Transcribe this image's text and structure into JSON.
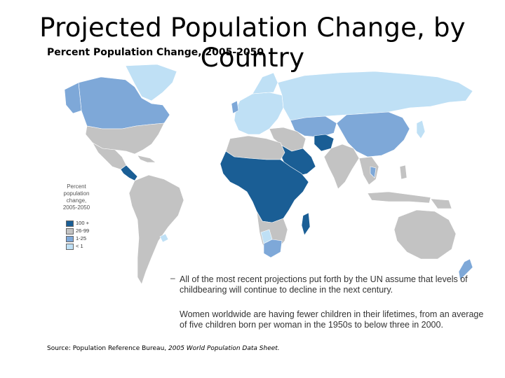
{
  "slide": {
    "title": "Projected Population Change, by Country",
    "subtitle": "Percent Population Change, 2005-2050",
    "note_1": "All of the most recent projections put forth by the UN assume that levels of childbearing will continue to decline in the next century.",
    "note_2": "Women worldwide are having fewer children in their lifetimes, from an average of five children born per woman in the 1950s to below three in 2000.",
    "source_prefix": "Source: Population Reference Bureau,",
    "source_title": "2005 World Population Data Sheet."
  },
  "legend": {
    "title_lines": [
      "Percent",
      "population",
      "change,",
      "2005-2050"
    ],
    "items": [
      {
        "label": "100 +",
        "color": "#1a5e95"
      },
      {
        "label": "26-99",
        "color": "#c3c3c3"
      },
      {
        "label": "1-25",
        "color": "#7ea8d8"
      },
      {
        "label": "< 1",
        "color": "#bfe0f5"
      }
    ]
  },
  "colors": {
    "ocean": "#ffffff",
    "border": "#ffffff"
  }
}
